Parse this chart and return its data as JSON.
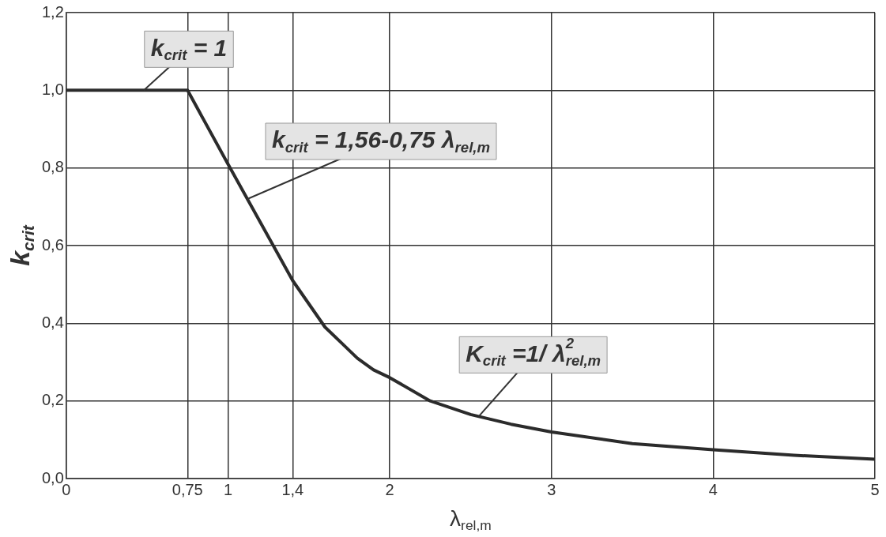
{
  "chart_data": {
    "type": "line",
    "xlabel": "λ$_{rel,m}$",
    "ylabel": "k$_{crit}$",
    "x": [
      0,
      0.75,
      1,
      1.2,
      1.4,
      1.5,
      1.6,
      1.7,
      1.8,
      1.9,
      2,
      2.25,
      2.5,
      2.75,
      3,
      3.5,
      4,
      4.5,
      5
    ],
    "series": [
      {
        "color": "#2b2b2b",
        "values": [
          1,
          1,
          0.81,
          0.66,
          0.51,
          0.45,
          0.39,
          0.35,
          0.31,
          0.28,
          0.26,
          0.2,
          0.165,
          0.14,
          0.12,
          0.09,
          0.074,
          0.06,
          0.05
        ]
      }
    ],
    "xlim": [
      0,
      5
    ],
    "ylim": [
      0,
      1.2
    ],
    "xticks": [
      0,
      {
        "value": 0.75,
        "label": "0,75"
      },
      1,
      {
        "value": 1.4,
        "label": "1,4"
      },
      2,
      3,
      4,
      5
    ],
    "yticks": [
      {
        "value": 0,
        "label": "0,0"
      },
      {
        "value": 0.2,
        "label": "0,2"
      },
      {
        "value": 0.4,
        "label": "0,4"
      },
      {
        "value": 0.6,
        "label": "0,6"
      },
      {
        "value": 0.8,
        "label": "0,8"
      },
      {
        "value": 1,
        "label": "1,0"
      },
      {
        "value": 1.2,
        "label": "1,2"
      }
    ],
    "grid": true,
    "marker": "none",
    "line_style": "solid",
    "annotations": [
      {
        "text": "k$_{crit}$ = 1",
        "x": 0.48,
        "y": 1
      },
      {
        "text": "k$_{crit}$ = 1,56-0,75 λ$_{rel,m}$",
        "x": 1.12,
        "y": 0.72
      },
      {
        "text": "K$_{crit}$ =1/ λ$^{2}$$_{rel,m}$",
        "x": 2.55,
        "y": 0.16
      }
    ]
  }
}
